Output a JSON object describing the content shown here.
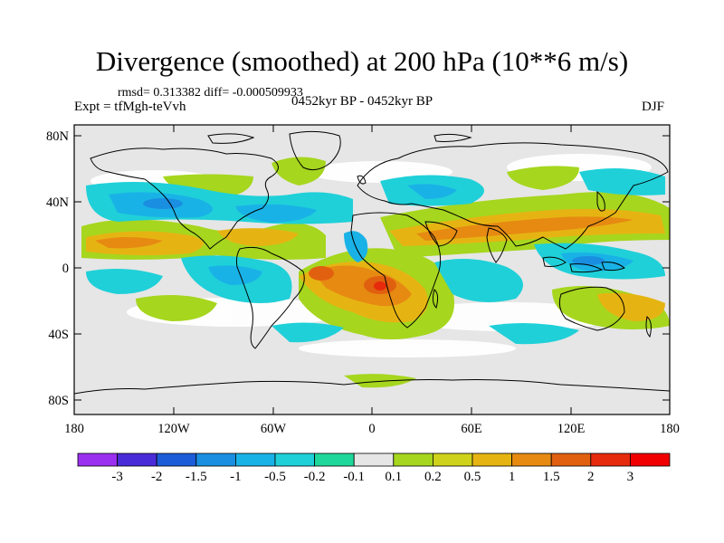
{
  "title": "Divergence (smoothed) at 200 hPa (10**6 m/s)",
  "stats": "rmsd= 0.313382  diff= -0.000509933",
  "experiment": "Expt = tfMgh-teVvh",
  "period": "0452kyr BP - 0452kyr BP",
  "season": "DJF",
  "map": {
    "projection": "cylindrical equidistant",
    "lon_range": [
      -180,
      180
    ],
    "lat_range": [
      -90,
      90
    ],
    "x_ticks": [
      "180",
      "120W",
      "60W",
      "0",
      "60E",
      "120E",
      "180"
    ],
    "y_ticks": [
      "80N",
      "40N",
      "0",
      "40S",
      "80S"
    ]
  },
  "colorbar": {
    "labels": [
      "-3",
      "-2",
      "-1.5",
      "-1",
      "-0.5",
      "-0.2",
      "-0.1",
      "0.1",
      "0.2",
      "0.5",
      "1",
      "1.5",
      "2",
      "3"
    ],
    "colors": [
      "#9b30f0",
      "#4a2bd8",
      "#1c5cd8",
      "#1a8ee0",
      "#19b2e6",
      "#1fd0d8",
      "#1ed79a",
      "#e6e6e6",
      "#a6d61e",
      "#cfd21a",
      "#e6b412",
      "#e68a12",
      "#e0600f",
      "#e62a0c",
      "#f00000"
    ]
  }
}
